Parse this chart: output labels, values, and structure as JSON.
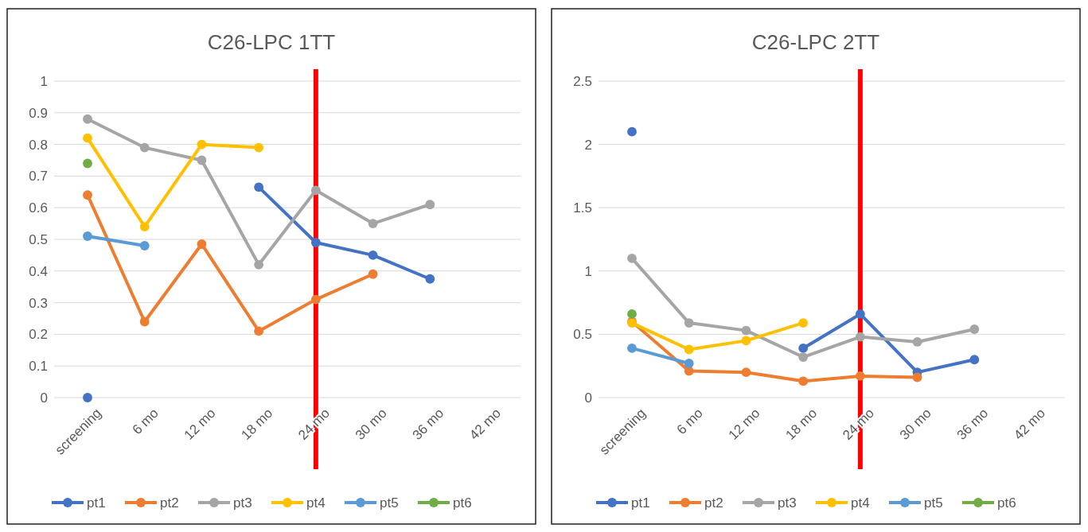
{
  "chart_data": [
    {
      "type": "line",
      "title": "C26-LPC 1TT",
      "categories": [
        "screening",
        "6 mo",
        "12 mo",
        "18 mo",
        "24 mo",
        "30 mo",
        "36 mo",
        "42 mo"
      ],
      "series": [
        {
          "name": "pt1",
          "color": "#4472c4",
          "values": [
            0,
            null,
            null,
            0.665,
            0.49,
            0.45,
            0.375,
            null
          ]
        },
        {
          "name": "pt2",
          "color": "#ed7d31",
          "values": [
            0.64,
            0.24,
            0.485,
            0.21,
            0.31,
            0.39,
            null,
            null
          ]
        },
        {
          "name": "pt3",
          "color": "#a5a5a5",
          "values": [
            0.88,
            0.79,
            0.75,
            0.42,
            0.655,
            0.55,
            0.61,
            null
          ]
        },
        {
          "name": "pt4",
          "color": "#ffc000",
          "values": [
            0.82,
            0.54,
            0.8,
            0.79,
            null,
            null,
            null,
            null
          ]
        },
        {
          "name": "pt5",
          "color": "#5b9bd5",
          "values": [
            0.51,
            0.48,
            null,
            null,
            null,
            null,
            null,
            null
          ]
        },
        {
          "name": "pt6",
          "color": "#70ad47",
          "values": [
            0.74,
            null,
            null,
            null,
            null,
            null,
            null,
            null
          ]
        }
      ],
      "ylim": [
        0,
        1
      ],
      "yticks": [
        0,
        0.1,
        0.2,
        0.3,
        0.4,
        0.5,
        0.6,
        0.7,
        0.8,
        0.9,
        1
      ],
      "grid": "y",
      "legend": "bottom",
      "marker": "circle",
      "ref_lines": [
        {
          "axis": "x",
          "value": "24 mo",
          "color": "#ff0000"
        }
      ]
    },
    {
      "type": "line",
      "title": "C26-LPC 2TT",
      "categories": [
        "screening",
        "6 mo",
        "12 mo",
        "18 mo",
        "24 mo",
        "30 mo",
        "36 mo",
        "42 mo"
      ],
      "series": [
        {
          "name": "pt1",
          "color": "#4472c4",
          "values": [
            2.1,
            null,
            null,
            0.39,
            0.66,
            0.2,
            0.3,
            null
          ]
        },
        {
          "name": "pt2",
          "color": "#ed7d31",
          "values": [
            0.6,
            0.21,
            0.2,
            0.13,
            0.17,
            0.16,
            null,
            null
          ]
        },
        {
          "name": "pt3",
          "color": "#a5a5a5",
          "values": [
            1.1,
            0.59,
            0.53,
            0.32,
            0.48,
            0.44,
            0.54,
            null
          ]
        },
        {
          "name": "pt4",
          "color": "#ffc000",
          "values": [
            0.59,
            0.38,
            0.45,
            0.59,
            null,
            null,
            null,
            null
          ]
        },
        {
          "name": "pt5",
          "color": "#5b9bd5",
          "values": [
            0.39,
            0.27,
            null,
            null,
            null,
            null,
            null,
            null
          ]
        },
        {
          "name": "pt6",
          "color": "#70ad47",
          "values": [
            0.66,
            null,
            null,
            null,
            null,
            null,
            null,
            null
          ]
        }
      ],
      "ylim": [
        0,
        2.5
      ],
      "yticks": [
        0,
        0.5,
        1,
        1.5,
        2,
        2.5
      ],
      "grid": "y",
      "legend": "bottom",
      "marker": "circle",
      "ref_lines": [
        {
          "axis": "x",
          "value": "24 mo",
          "color": "#ff0000"
        }
      ]
    }
  ]
}
